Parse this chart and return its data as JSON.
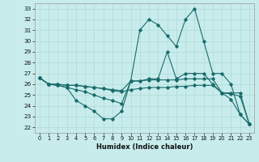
{
  "title": "",
  "xlabel": "Humidex (Indice chaleur)",
  "background_color": "#c8ecec",
  "grid_color": "#b0d8d8",
  "line_color": "#1a6b6b",
  "xlim": [
    -0.5,
    23.5
  ],
  "ylim": [
    21.5,
    33.5
  ],
  "yticks": [
    22,
    23,
    24,
    25,
    26,
    27,
    28,
    29,
    30,
    31,
    32,
    33
  ],
  "xticks": [
    0,
    1,
    2,
    3,
    4,
    5,
    6,
    7,
    8,
    9,
    10,
    11,
    12,
    13,
    14,
    15,
    16,
    17,
    18,
    19,
    20,
    21,
    22,
    23
  ],
  "series": [
    [
      26.6,
      26.0,
      25.9,
      25.7,
      24.5,
      24.0,
      23.5,
      22.8,
      22.8,
      23.5,
      26.3,
      26.3,
      26.5,
      26.5,
      29.0,
      26.5,
      27.0,
      27.0,
      27.0,
      26.0,
      25.2,
      24.6,
      23.2,
      22.3
    ],
    [
      26.6,
      26.0,
      25.9,
      25.7,
      25.5,
      25.3,
      25.0,
      24.7,
      24.5,
      24.2,
      26.3,
      31.0,
      32.0,
      31.5,
      30.5,
      29.5,
      32.0,
      33.0,
      30.0,
      27.0,
      27.0,
      26.0,
      23.2,
      22.3
    ],
    [
      26.6,
      26.0,
      26.0,
      25.9,
      25.9,
      25.8,
      25.7,
      25.6,
      25.5,
      25.4,
      26.3,
      26.3,
      26.4,
      26.4,
      26.4,
      26.4,
      26.5,
      26.5,
      26.5,
      26.5,
      25.2,
      25.2,
      25.2,
      22.3
    ],
    [
      26.6,
      26.0,
      26.0,
      25.9,
      25.9,
      25.8,
      25.7,
      25.6,
      25.4,
      25.3,
      25.5,
      25.6,
      25.7,
      25.7,
      25.7,
      25.8,
      25.8,
      25.9,
      25.9,
      25.9,
      25.2,
      25.1,
      24.9,
      22.3
    ]
  ]
}
